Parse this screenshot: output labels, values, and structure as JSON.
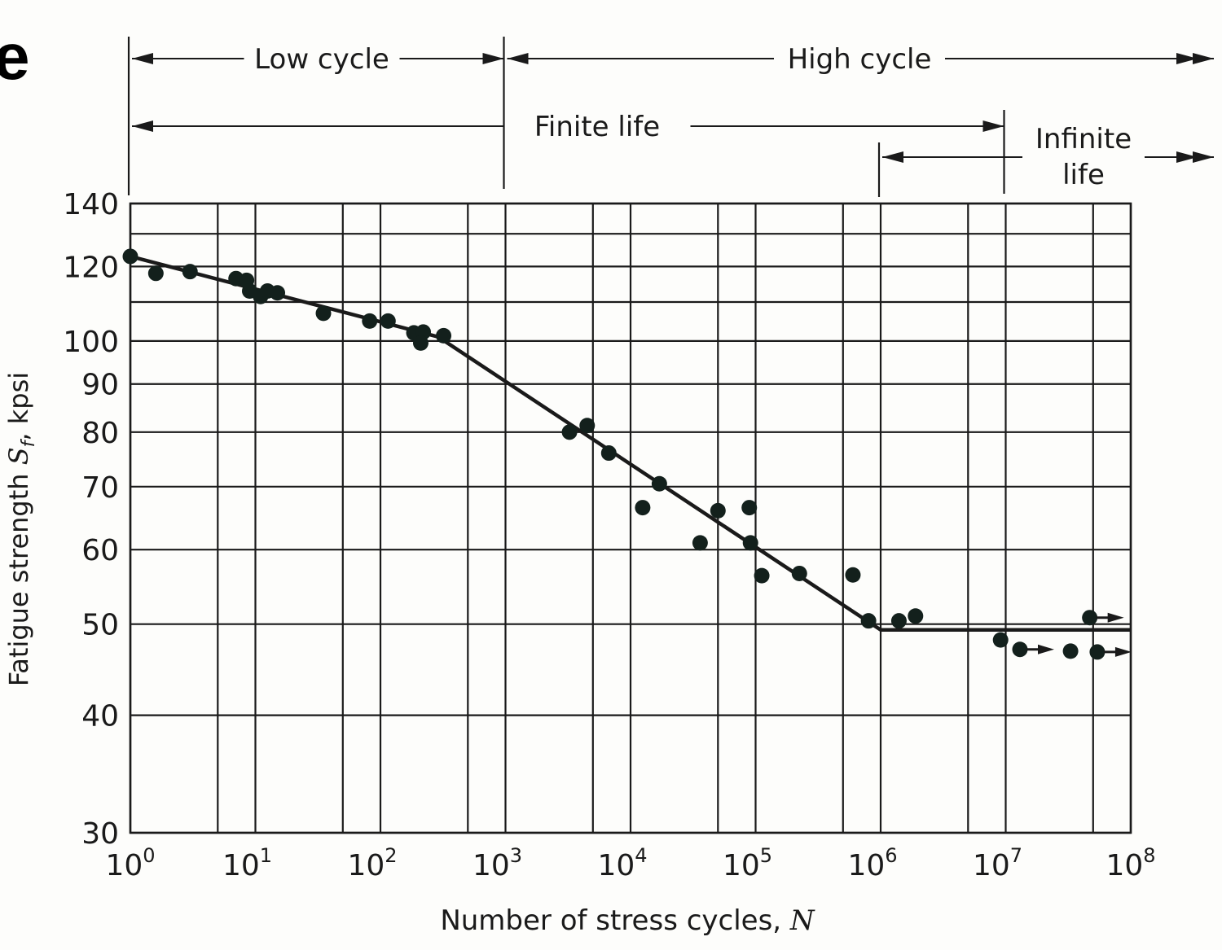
{
  "fragment_text": "e",
  "chart_data": {
    "type": "scatter",
    "title": "",
    "xlabel": "Number of stress cycles, N",
    "ylabel": "Fatigue strength S_f, kpsi",
    "ylabel_parts": {
      "pre": "Fatigue strength ",
      "sym": "S",
      "sub": "f",
      "post": ", kpsi"
    },
    "xlabel_parts": {
      "pre": "Number of stress cycles, ",
      "sym": "N"
    },
    "x_scale": "log",
    "y_scale": "log",
    "xlim": [
      1,
      100000000
    ],
    "ylim": [
      30,
      140
    ],
    "grid": true,
    "x_ticks": [
      {
        "value": 1,
        "base": "10",
        "exp": "0"
      },
      {
        "value": 10,
        "base": "10",
        "exp": "1"
      },
      {
        "value": 100,
        "base": "10",
        "exp": "2"
      },
      {
        "value": 1000,
        "base": "10",
        "exp": "3"
      },
      {
        "value": 10000,
        "base": "10",
        "exp": "4"
      },
      {
        "value": 100000,
        "base": "10",
        "exp": "5"
      },
      {
        "value": 1000000,
        "base": "10",
        "exp": "6"
      },
      {
        "value": 10000000,
        "base": "10",
        "exp": "7"
      },
      {
        "value": 100000000,
        "base": "10",
        "exp": "8"
      }
    ],
    "x_grid": [
      1,
      5,
      10,
      50,
      100,
      500,
      1000,
      5000,
      10000,
      50000,
      100000,
      500000,
      1000000,
      5000000,
      10000000,
      50000000,
      100000000
    ],
    "y_ticks": [
      "30",
      "40",
      "50",
      "60",
      "70",
      "80",
      "90",
      "100",
      "120",
      "140"
    ],
    "y_grid": [
      30,
      40,
      50,
      60,
      70,
      80,
      90,
      100,
      110,
      120,
      130,
      140
    ],
    "points": [
      {
        "N": 1,
        "S": 123
      },
      {
        "N": 1.6,
        "S": 118
      },
      {
        "N": 3,
        "S": 118.5
      },
      {
        "N": 7,
        "S": 116.5
      },
      {
        "N": 8.5,
        "S": 116
      },
      {
        "N": 9,
        "S": 113
      },
      {
        "N": 11,
        "S": 111.5
      },
      {
        "N": 12.5,
        "S": 113
      },
      {
        "N": 15,
        "S": 112.5
      },
      {
        "N": 35,
        "S": 107
      },
      {
        "N": 82,
        "S": 105
      },
      {
        "N": 115,
        "S": 105
      },
      {
        "N": 185,
        "S": 102
      },
      {
        "N": 220,
        "S": 102.2
      },
      {
        "N": 210,
        "S": 99.5
      },
      {
        "N": 320,
        "S": 101.3
      },
      {
        "N": 3250,
        "S": 80
      },
      {
        "N": 4500,
        "S": 81.3
      },
      {
        "N": 6700,
        "S": 76
      },
      {
        "N": 12500,
        "S": 66.5
      },
      {
        "N": 17000,
        "S": 70.5
      },
      {
        "N": 36000,
        "S": 61
      },
      {
        "N": 50000,
        "S": 66
      },
      {
        "N": 89000,
        "S": 66.5
      },
      {
        "N": 91000,
        "S": 61
      },
      {
        "N": 112000,
        "S": 56.3
      },
      {
        "N": 224000,
        "S": 56.6
      },
      {
        "N": 600000,
        "S": 56.4
      },
      {
        "N": 800000,
        "S": 50.4
      },
      {
        "N": 1400000,
        "S": 50.4
      },
      {
        "N": 1900000,
        "S": 51
      },
      {
        "N": 9100000,
        "S": 48.1
      },
      {
        "N": 13000000,
        "S": 47,
        "runout": true
      },
      {
        "N": 33000000,
        "S": 46.8
      },
      {
        "N": 47000000,
        "S": 50.8,
        "runout": true
      },
      {
        "N": 54000000,
        "S": 46.7,
        "runout": true
      }
    ],
    "fit_line": [
      {
        "N": 1,
        "S": 123
      },
      {
        "N": 290,
        "S": 101
      },
      {
        "N": 1000000,
        "S": 49.3
      },
      {
        "N": 100000000,
        "S": 49.3
      }
    ],
    "regions": [
      {
        "label": "Low cycle",
        "from": 1,
        "to": 1000,
        "row": 1
      },
      {
        "label": "High cycle",
        "from": 1000,
        "to": 100000000,
        "row": 1
      },
      {
        "label": "Finite life",
        "from": 1,
        "to": 10000000,
        "row": 2
      },
      {
        "label": "Infinite",
        "label2": "life",
        "from": 1000000,
        "to": 100000000,
        "row": 3
      }
    ],
    "colors": {
      "ink": "#1a1a1a",
      "points": "#13201c",
      "background": "#fdfdfb"
    }
  }
}
